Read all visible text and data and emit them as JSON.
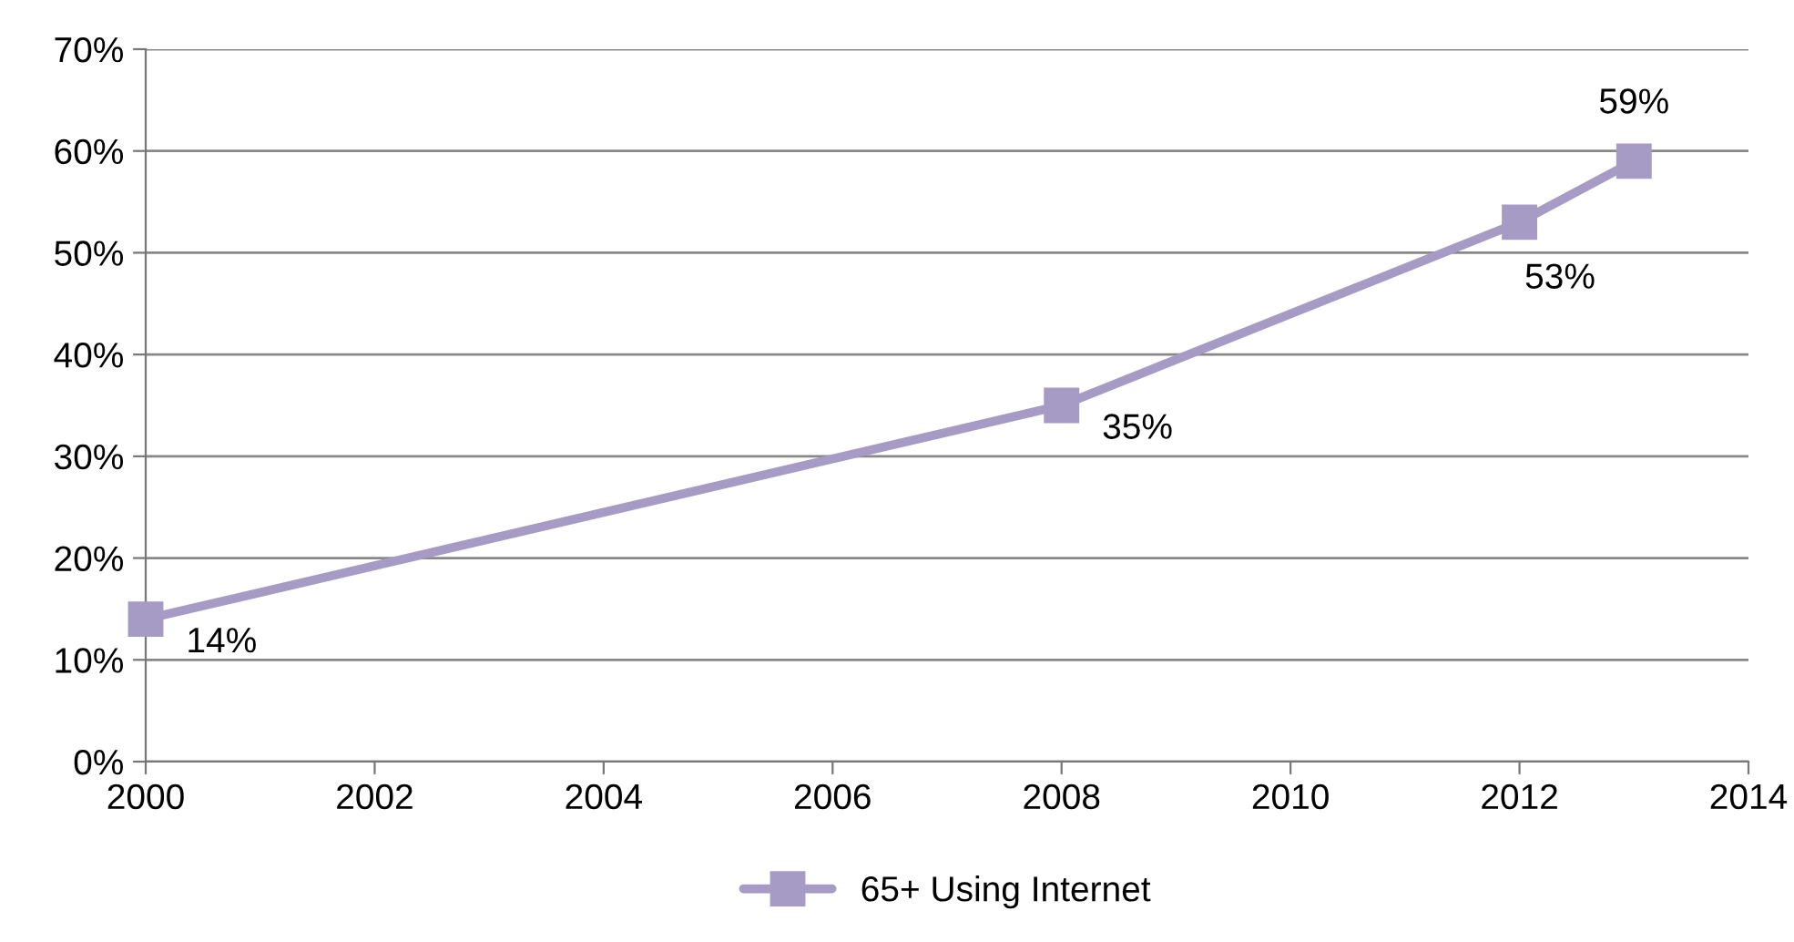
{
  "chart_data": {
    "type": "line",
    "x": [
      2000,
      2008,
      2012,
      2013
    ],
    "series": [
      {
        "name": "65+ Using Internet",
        "color": "#a69bc5",
        "values": [
          14,
          35,
          53,
          59
        ],
        "value_labels": [
          "14%",
          "35%",
          "53%",
          "59%"
        ]
      }
    ],
    "xlim": [
      2000,
      2014
    ],
    "xticks": [
      2000,
      2002,
      2004,
      2006,
      2008,
      2010,
      2012,
      2014
    ],
    "ylim": [
      0,
      70
    ],
    "yticks": [
      {
        "value": 0,
        "label": "0%"
      },
      {
        "value": 10,
        "label": "10%"
      },
      {
        "value": 20,
        "label": "20%"
      },
      {
        "value": 30,
        "label": "30%"
      },
      {
        "value": 40,
        "label": "40%"
      },
      {
        "value": 50,
        "label": "50%"
      },
      {
        "value": 60,
        "label": "60%"
      },
      {
        "value": 70,
        "label": "70%"
      }
    ],
    "grid": "y",
    "legend": "bottom",
    "marker": "square",
    "line_style": "solid"
  }
}
